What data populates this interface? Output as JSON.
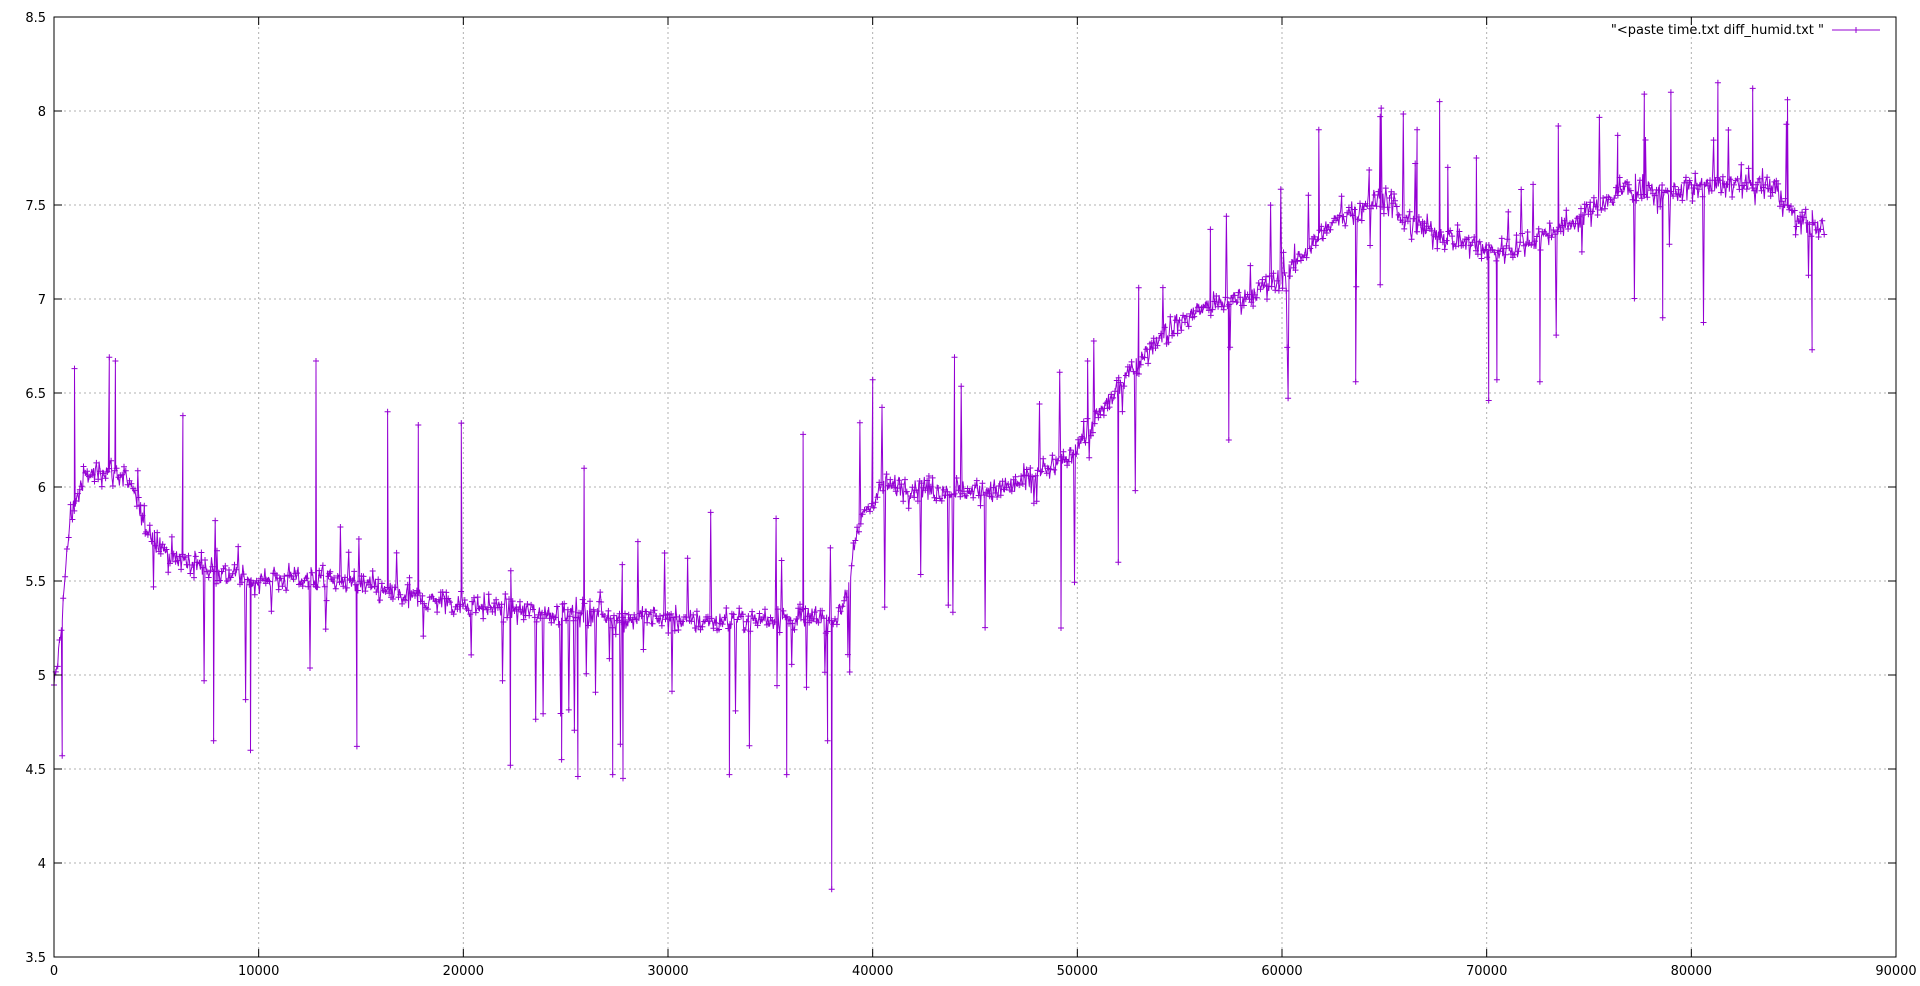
{
  "chart_data": {
    "type": "line",
    "title": "",
    "xlabel": "",
    "ylabel": "",
    "xlim": [
      0,
      90000
    ],
    "ylim": [
      3.5,
      8.5
    ],
    "x_ticks": [
      0,
      10000,
      20000,
      30000,
      40000,
      50000,
      60000,
      70000,
      80000,
      90000
    ],
    "y_ticks": [
      3.5,
      4,
      4.5,
      5,
      5.5,
      6,
      6.5,
      7,
      7.5,
      8,
      8.5
    ],
    "x_tick_labels": [
      "0",
      "10000",
      "20000",
      "30000",
      "40000",
      "50000",
      "60000",
      "70000",
      "80000",
      "90000"
    ],
    "y_tick_labels": [
      "3.5",
      "4",
      "4.5",
      "5",
      "5.5",
      "6",
      "6.5",
      "7",
      "7.5",
      "8",
      "8.5"
    ],
    "grid": true,
    "legend_position": "top-right",
    "color": "#9400d3",
    "series": [
      {
        "name": "\"<paste time.txt diff_humid.txt  \"",
        "marker": "plus",
        "trend": [
          [
            0,
            4.9
          ],
          [
            300,
            5.2
          ],
          [
            800,
            5.85
          ],
          [
            1500,
            6.05
          ],
          [
            2500,
            6.1
          ],
          [
            3500,
            6.05
          ],
          [
            4500,
            5.8
          ],
          [
            5500,
            5.65
          ],
          [
            6500,
            5.6
          ],
          [
            8000,
            5.55
          ],
          [
            10000,
            5.5
          ],
          [
            12000,
            5.52
          ],
          [
            14000,
            5.5
          ],
          [
            16000,
            5.45
          ],
          [
            18000,
            5.4
          ],
          [
            20000,
            5.38
          ],
          [
            22000,
            5.35
          ],
          [
            24000,
            5.33
          ],
          [
            26000,
            5.33
          ],
          [
            28000,
            5.3
          ],
          [
            30000,
            5.3
          ],
          [
            32000,
            5.28
          ],
          [
            34000,
            5.3
          ],
          [
            36000,
            5.3
          ],
          [
            38000,
            5.3
          ],
          [
            38500,
            5.35
          ],
          [
            39500,
            5.85
          ],
          [
            40500,
            6.0
          ],
          [
            42000,
            6.0
          ],
          [
            44000,
            5.98
          ],
          [
            46000,
            5.98
          ],
          [
            48000,
            6.05
          ],
          [
            49500,
            6.15
          ],
          [
            50500,
            6.3
          ],
          [
            51500,
            6.45
          ],
          [
            52500,
            6.6
          ],
          [
            54000,
            6.8
          ],
          [
            56000,
            6.95
          ],
          [
            58000,
            7.0
          ],
          [
            60000,
            7.1
          ],
          [
            61000,
            7.25
          ],
          [
            62500,
            7.4
          ],
          [
            64000,
            7.5
          ],
          [
            65000,
            7.55
          ],
          [
            66000,
            7.4
          ],
          [
            67500,
            7.35
          ],
          [
            69000,
            7.3
          ],
          [
            70500,
            7.25
          ],
          [
            72000,
            7.3
          ],
          [
            74000,
            7.4
          ],
          [
            75500,
            7.5
          ],
          [
            77000,
            7.6
          ],
          [
            78500,
            7.55
          ],
          [
            80000,
            7.6
          ],
          [
            82000,
            7.6
          ],
          [
            84000,
            7.6
          ],
          [
            85000,
            7.45
          ],
          [
            86500,
            7.35
          ]
        ],
        "spikes": [
          [
            1000,
            6.63
          ],
          [
            2700,
            6.69
          ],
          [
            3000,
            6.67
          ],
          [
            6300,
            6.38
          ],
          [
            12800,
            6.67
          ],
          [
            16300,
            6.4
          ],
          [
            17800,
            6.33
          ],
          [
            19900,
            6.34
          ],
          [
            25900,
            6.1
          ],
          [
            36600,
            6.28
          ],
          [
            38000,
            3.86
          ],
          [
            37800,
            4.65
          ],
          [
            40000,
            6.57
          ],
          [
            44000,
            6.69
          ],
          [
            50500,
            6.67
          ],
          [
            53000,
            7.06
          ],
          [
            56500,
            7.37
          ],
          [
            61800,
            7.9
          ],
          [
            64800,
            7.97
          ],
          [
            66600,
            7.9
          ],
          [
            67700,
            8.05
          ],
          [
            68100,
            7.7
          ],
          [
            69500,
            7.75
          ],
          [
            73500,
            7.92
          ],
          [
            76400,
            7.87
          ],
          [
            77700,
            8.09
          ],
          [
            79000,
            8.1
          ],
          [
            81300,
            8.15
          ],
          [
            83000,
            8.12
          ],
          [
            84700,
            8.06
          ],
          [
            400,
            4.57
          ],
          [
            7800,
            4.65
          ],
          [
            9600,
            4.6
          ],
          [
            14800,
            4.62
          ],
          [
            22300,
            4.52
          ],
          [
            24800,
            4.55
          ],
          [
            25600,
            4.46
          ],
          [
            27300,
            4.47
          ],
          [
            27800,
            4.45
          ],
          [
            33000,
            4.47
          ],
          [
            35800,
            4.47
          ],
          [
            49200,
            5.25
          ],
          [
            52000,
            5.6
          ],
          [
            57400,
            6.25
          ],
          [
            63600,
            6.56
          ],
          [
            70100,
            6.46
          ],
          [
            70500,
            6.57
          ],
          [
            72600,
            6.56
          ],
          [
            78600,
            6.9
          ],
          [
            85900,
            6.73
          ]
        ]
      }
    ]
  }
}
